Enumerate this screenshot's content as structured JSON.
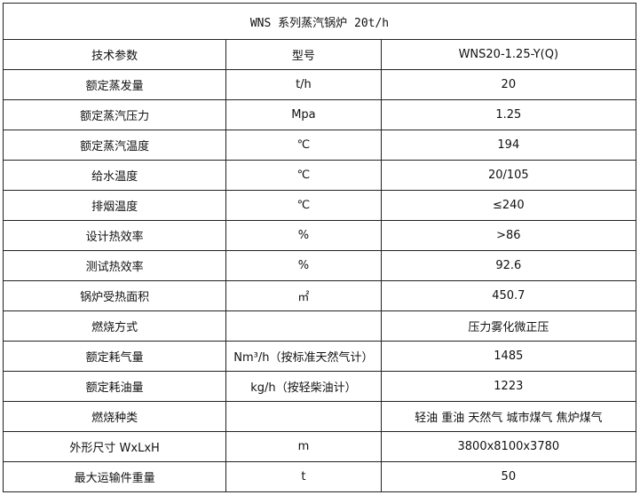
{
  "title": "WNS 系列蒸汽锅炉 20t/h",
  "rows": [
    [
      "技术参数",
      "型号",
      "WNS20-1.25-Y(Q)"
    ],
    [
      "额定蒸发量",
      "t/h",
      "20"
    ],
    [
      "额定蒸汽压力",
      "Mpa",
      "1.25"
    ],
    [
      "额定蒸汽温度",
      "℃",
      "194"
    ],
    [
      "给水温度",
      "℃",
      "20/105"
    ],
    [
      "排烟温度",
      "℃",
      "≤240"
    ],
    [
      "设计热效率",
      "%",
      ">86"
    ],
    [
      "测试热效率",
      "%",
      "92.6"
    ],
    [
      "锅炉受热面积",
      "㎡",
      "450.7"
    ],
    [
      "燃烧方式",
      "",
      "压力雾化微正压"
    ],
    [
      "额定耗气量",
      "Nm³/h（按标准天然气计）",
      "1485"
    ],
    [
      "额定耗油量",
      "kg/h（按轻柴油计）",
      "1223"
    ],
    [
      "燃烧种类",
      "",
      "轻油 重油 天然气 城市煤气 焦炉煤气"
    ],
    [
      "外形尺寸 WxLxH",
      "m",
      "3800x8100x3780"
    ],
    [
      "最大运输件重量",
      "t",
      "50"
    ]
  ]
}
